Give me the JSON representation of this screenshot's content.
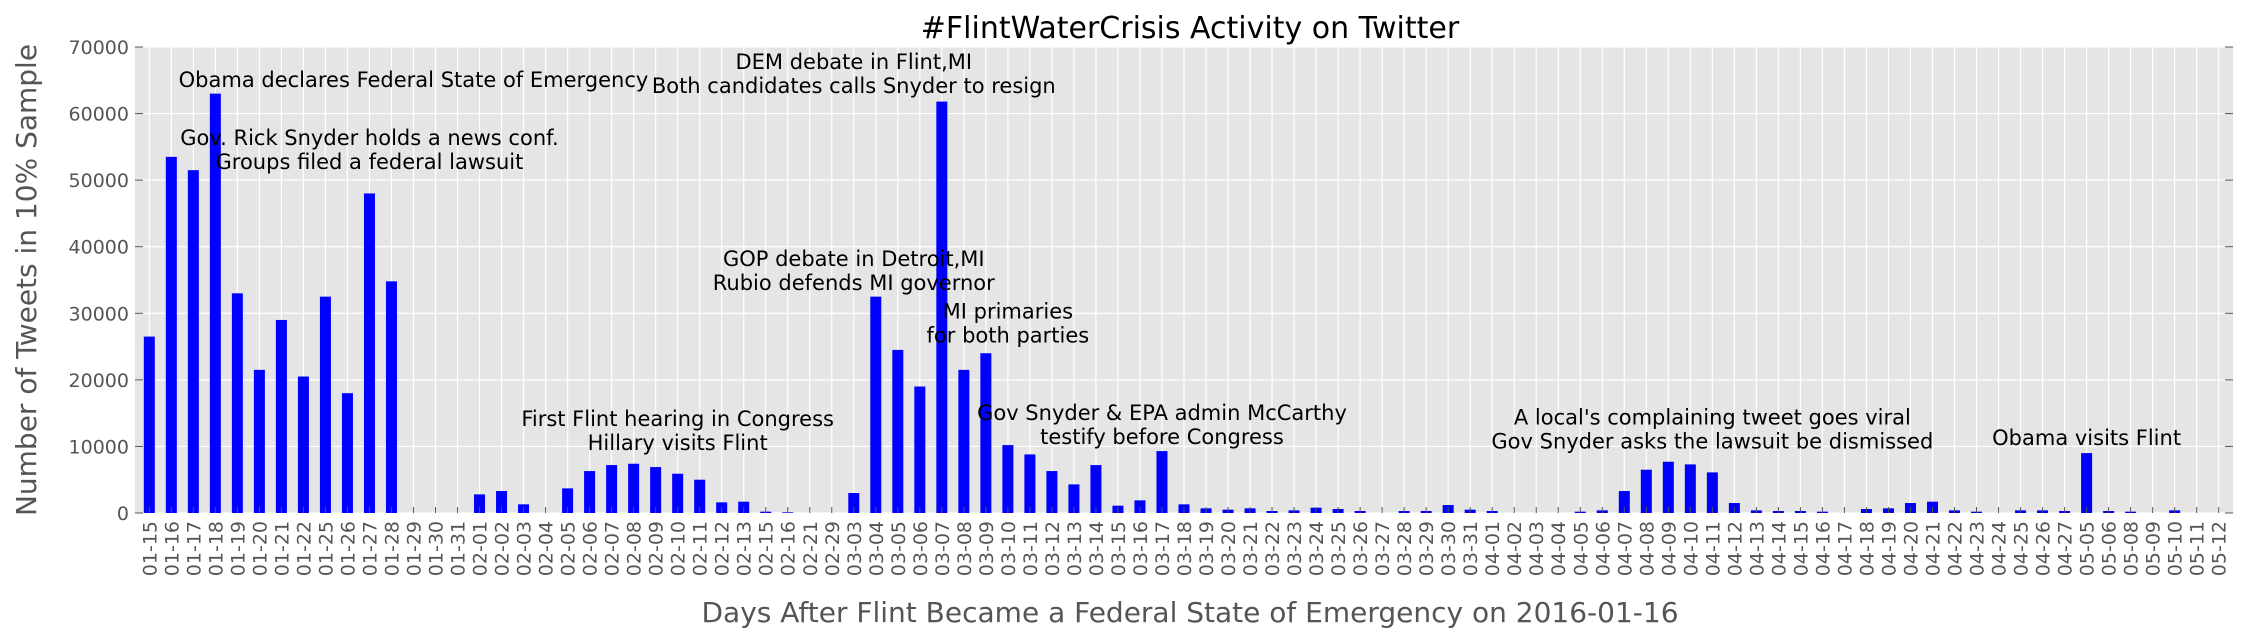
{
  "chart_data": {
    "type": "bar",
    "title": "#FlintWaterCrisis Activity on Twitter",
    "xlabel": "Days After Flint Became a Federal State of Emergency on 2016-01-16",
    "ylabel": "Number of Tweets in 10% Sample",
    "ylim": [
      0,
      70000
    ],
    "yticks": [
      0,
      10000,
      20000,
      30000,
      40000,
      50000,
      60000,
      70000
    ],
    "grid": true,
    "bar_color": "#0000ff",
    "plot_background": "#e5e5e5",
    "categories": [
      "01-15",
      "01-16",
      "01-17",
      "01-18",
      "01-19",
      "01-20",
      "01-21",
      "01-22",
      "01-25",
      "01-26",
      "01-27",
      "01-28",
      "01-29",
      "01-30",
      "01-31",
      "02-01",
      "02-02",
      "02-03",
      "02-04",
      "02-05",
      "02-06",
      "02-07",
      "02-08",
      "02-09",
      "02-10",
      "02-11",
      "02-12",
      "02-13",
      "02-15",
      "02-16",
      "02-21",
      "02-29",
      "03-03",
      "03-04",
      "03-05",
      "03-06",
      "03-07",
      "03-08",
      "03-09",
      "03-10",
      "03-11",
      "03-12",
      "03-13",
      "03-14",
      "03-15",
      "03-16",
      "03-17",
      "03-18",
      "03-19",
      "03-20",
      "03-21",
      "03-22",
      "03-23",
      "03-24",
      "03-25",
      "03-26",
      "03-27",
      "03-28",
      "03-29",
      "03-30",
      "03-31",
      "04-01",
      "04-02",
      "04-03",
      "04-04",
      "04-05",
      "04-06",
      "04-07",
      "04-08",
      "04-09",
      "04-10",
      "04-11",
      "04-12",
      "04-13",
      "04-14",
      "04-15",
      "04-16",
      "04-17",
      "04-18",
      "04-19",
      "04-20",
      "04-21",
      "04-22",
      "04-23",
      "04-24",
      "04-25",
      "04-26",
      "04-27",
      "05-05",
      "05-06",
      "05-08",
      "05-09",
      "05-10",
      "05-11",
      "05-12"
    ],
    "values": [
      26500,
      53500,
      51500,
      63000,
      33000,
      21500,
      29000,
      20500,
      32500,
      18000,
      48000,
      34800,
      0,
      0,
      0,
      2800,
      3300,
      1300,
      0,
      3700,
      6300,
      7200,
      7400,
      6900,
      5900,
      5000,
      1600,
      1700,
      200,
      100,
      0,
      0,
      3000,
      32500,
      24500,
      19000,
      61800,
      21500,
      24000,
      10200,
      8800,
      6300,
      4300,
      7200,
      1100,
      1900,
      9300,
      1300,
      700,
      500,
      700,
      300,
      400,
      800,
      600,
      300,
      0,
      300,
      300,
      1200,
      500,
      300,
      0,
      0,
      0,
      200,
      400,
      3300,
      6500,
      7700,
      7300,
      6100,
      1500,
      400,
      300,
      300,
      200,
      0,
      600,
      700,
      1500,
      1700,
      400,
      200,
      0,
      400,
      400,
      300,
      9000,
      300,
      200,
      0,
      400,
      0,
      0
    ],
    "annotations": [
      {
        "lines": [
          "Obama declares Federal State of Emergency"
        ],
        "x_category": "01-29",
        "y": 64000
      },
      {
        "lines": [
          "Gov. Rick Snyder holds a news conf.",
          "Groups filed a federal lawsuit"
        ],
        "x_category": "01-27",
        "y": 51700
      },
      {
        "lines": [
          "First Flint hearing in Congress",
          "Hillary visits Flint"
        ],
        "x_category": "02-10",
        "y": 9500
      },
      {
        "lines": [
          "GOP debate in Detroit,MI",
          "Rubio defends MI governor"
        ],
        "x_category": "03-03",
        "y": 33500
      },
      {
        "lines": [
          "DEM debate in Flint,MI",
          "Both candidates calls Snyder to resign"
        ],
        "x_category": "03-03",
        "y": 63100
      },
      {
        "lines": [
          "MI primaries",
          "for both parties"
        ],
        "x_category": "03-10",
        "y": 25600
      },
      {
        "lines": [
          "Gov Snyder & EPA admin McCarthy",
          "testify before Congress"
        ],
        "x_category": "03-17",
        "y": 10400
      },
      {
        "lines": [
          "A local's complaining tweet goes viral",
          "Gov Snyder asks the lawsuit be dismissed"
        ],
        "x_category": "04-11",
        "y": 9700
      },
      {
        "lines": [
          "Obama visits Flint"
        ],
        "x_category": "05-05",
        "y": 10200
      }
    ]
  }
}
